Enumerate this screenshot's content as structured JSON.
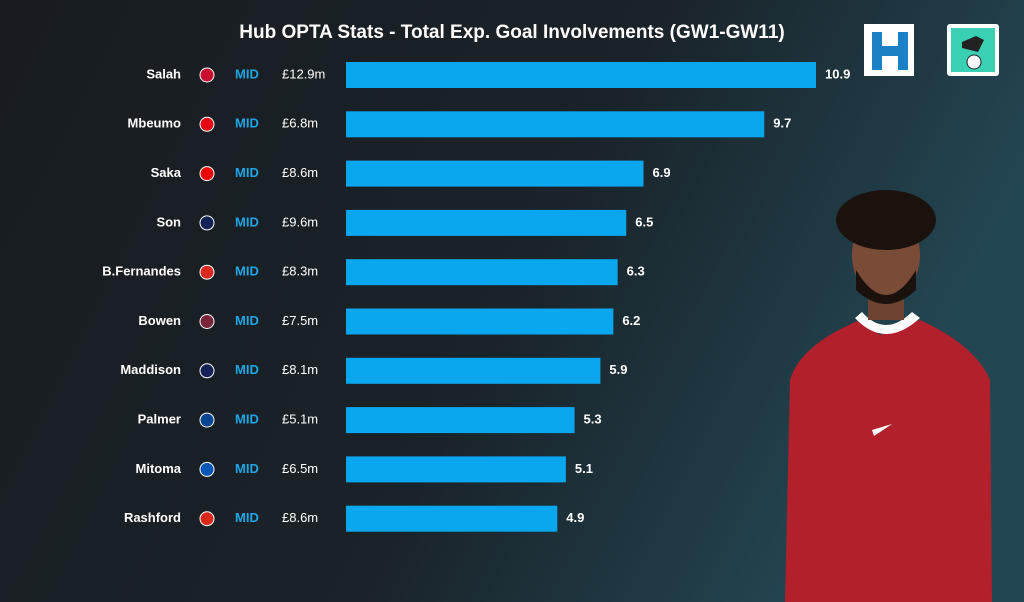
{
  "chart_data": {
    "type": "bar",
    "title": "Hub OPTA Stats - Total Exp. Goal Involvements (GW1-GW11)",
    "categories": [
      "Salah",
      "Mbeumo",
      "Saka",
      "Son",
      "B.Fernandes",
      "Bowen",
      "Maddison",
      "Palmer",
      "Mitoma",
      "Rashford"
    ],
    "positions": [
      "MID",
      "MID",
      "MID",
      "MID",
      "MID",
      "MID",
      "MID",
      "MID",
      "MID",
      "MID"
    ],
    "prices": [
      "£12.9m",
      "£6.8m",
      "£8.6m",
      "£9.6m",
      "£8.3m",
      "£7.5m",
      "£8.1m",
      "£5.1m",
      "£6.5m",
      "£8.6m"
    ],
    "values": [
      10.9,
      9.7,
      6.9,
      6.5,
      6.3,
      6.2,
      5.9,
      5.3,
      5.1,
      4.9
    ],
    "color": "#0aa7ee"
  }
}
